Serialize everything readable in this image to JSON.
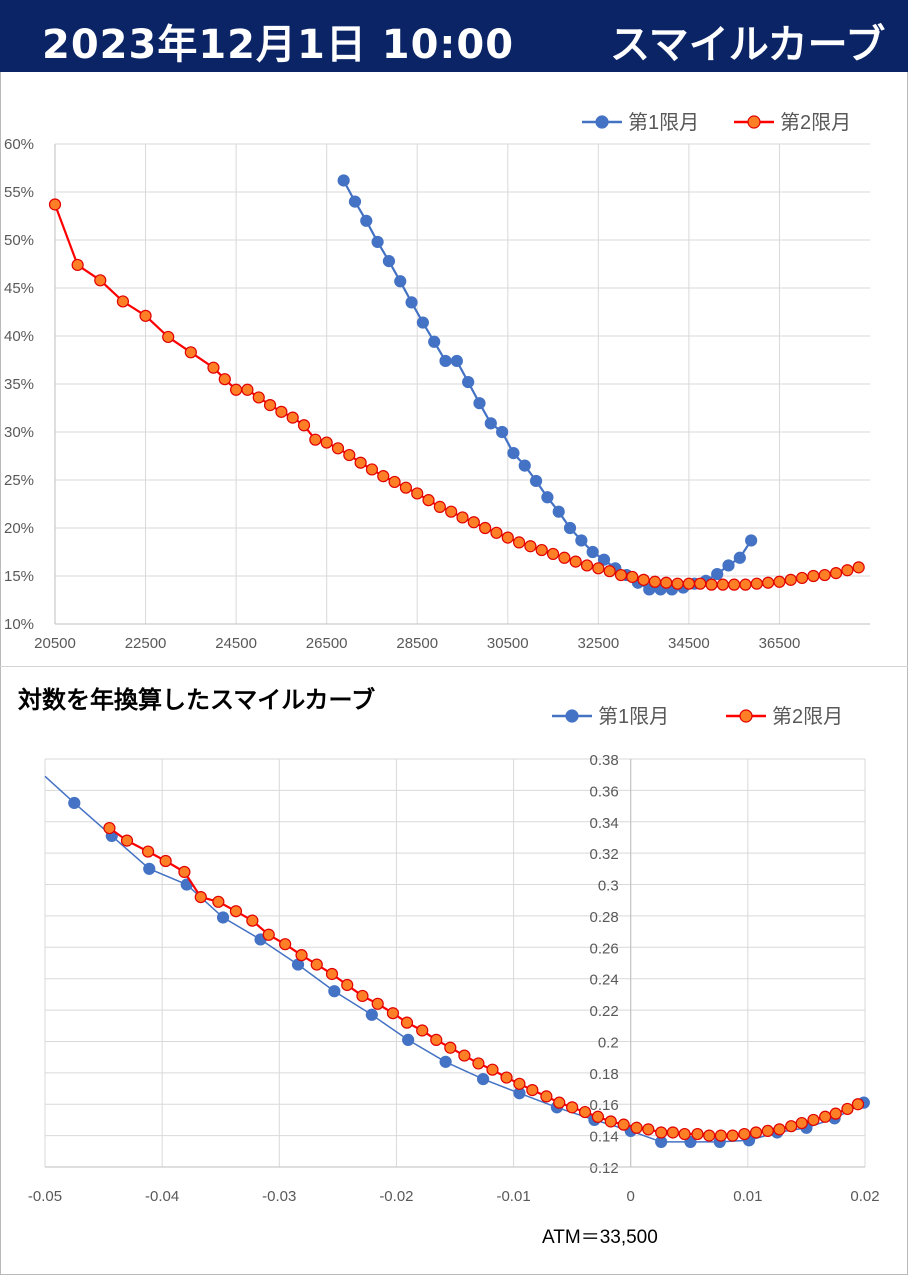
{
  "header": {
    "date": "2023年12月1日 10:00",
    "title": "スマイルカーブ",
    "bg_color": "#0b2466"
  },
  "atm_note": "ATM＝33,500",
  "chart_data": [
    {
      "type": "line",
      "title": "",
      "xlabel": "",
      "ylabel": "",
      "x_ticks": [
        20500,
        22500,
        24500,
        26500,
        28500,
        30500,
        32500,
        34500,
        36500
      ],
      "y_ticks": [
        "10%",
        "15%",
        "20%",
        "25%",
        "30%",
        "35%",
        "40%",
        "45%",
        "50%",
        "55%",
        "60%"
      ],
      "xlim": [
        20500,
        38500
      ],
      "ylim": [
        0.1,
        0.6
      ],
      "grid": true,
      "legend_position": "top-right",
      "series": [
        {
          "name": "第1限月",
          "color": "#4472c4",
          "marker_fill": "#4472c4",
          "marker_edge": "#4472c4",
          "points": [
            [
              26875,
              0.562
            ],
            [
              27125,
              0.54
            ],
            [
              27375,
              0.52
            ],
            [
              27625,
              0.498
            ],
            [
              27875,
              0.478
            ],
            [
              28125,
              0.457
            ],
            [
              28375,
              0.435
            ],
            [
              28625,
              0.414
            ],
            [
              28875,
              0.394
            ],
            [
              29125,
              0.374
            ],
            [
              29375,
              0.374
            ],
            [
              29625,
              0.352
            ],
            [
              29875,
              0.33
            ],
            [
              30125,
              0.309
            ],
            [
              30375,
              0.3
            ],
            [
              30625,
              0.278
            ],
            [
              30875,
              0.265
            ],
            [
              31125,
              0.249
            ],
            [
              31375,
              0.232
            ],
            [
              31625,
              0.217
            ],
            [
              31875,
              0.2
            ],
            [
              32125,
              0.187
            ],
            [
              32375,
              0.175
            ],
            [
              32625,
              0.167
            ],
            [
              32875,
              0.158
            ],
            [
              33125,
              0.151
            ],
            [
              33375,
              0.143
            ],
            [
              33625,
              0.136
            ],
            [
              33875,
              0.136
            ],
            [
              34125,
              0.136
            ],
            [
              34375,
              0.138
            ],
            [
              34625,
              0.142
            ],
            [
              34875,
              0.145
            ],
            [
              35125,
              0.152
            ],
            [
              35375,
              0.161
            ],
            [
              35625,
              0.169
            ],
            [
              35875,
              0.187
            ]
          ]
        },
        {
          "name": "第2限月",
          "color": "#ff0000",
          "marker_fill": "#ff7f27",
          "marker_edge": "#e00000",
          "points": [
            [
              20500,
              0.537
            ],
            [
              21000,
              0.474
            ],
            [
              21500,
              0.458
            ],
            [
              22000,
              0.436
            ],
            [
              22500,
              0.421
            ],
            [
              23000,
              0.399
            ],
            [
              23500,
              0.383
            ],
            [
              24000,
              0.367
            ],
            [
              24250,
              0.355
            ],
            [
              24500,
              0.344
            ],
            [
              24750,
              0.344
            ],
            [
              25000,
              0.336
            ],
            [
              25250,
              0.328
            ],
            [
              25500,
              0.321
            ],
            [
              25750,
              0.315
            ],
            [
              26000,
              0.307
            ],
            [
              26250,
              0.292
            ],
            [
              26500,
              0.289
            ],
            [
              26750,
              0.283
            ],
            [
              27000,
              0.276
            ],
            [
              27250,
              0.268
            ],
            [
              27500,
              0.261
            ],
            [
              27750,
              0.254
            ],
            [
              28000,
              0.248
            ],
            [
              28250,
              0.242
            ],
            [
              28500,
              0.236
            ],
            [
              28750,
              0.229
            ],
            [
              29000,
              0.222
            ],
            [
              29250,
              0.217
            ],
            [
              29500,
              0.211
            ],
            [
              29750,
              0.206
            ],
            [
              30000,
              0.2
            ],
            [
              30250,
              0.195
            ],
            [
              30500,
              0.19
            ],
            [
              30750,
              0.185
            ],
            [
              31000,
              0.181
            ],
            [
              31250,
              0.177
            ],
            [
              31500,
              0.173
            ],
            [
              31750,
              0.169
            ],
            [
              32000,
              0.165
            ],
            [
              32250,
              0.161
            ],
            [
              32500,
              0.158
            ],
            [
              32750,
              0.155
            ],
            [
              33000,
              0.151
            ],
            [
              33250,
              0.149
            ],
            [
              33500,
              0.146
            ],
            [
              33750,
              0.144
            ],
            [
              34000,
              0.143
            ],
            [
              34250,
              0.142
            ],
            [
              34500,
              0.142
            ],
            [
              34750,
              0.142
            ],
            [
              35000,
              0.141
            ],
            [
              35250,
              0.141
            ],
            [
              35500,
              0.141
            ],
            [
              35750,
              0.141
            ],
            [
              36000,
              0.142
            ],
            [
              36250,
              0.143
            ],
            [
              36500,
              0.144
            ],
            [
              36750,
              0.146
            ],
            [
              37000,
              0.148
            ],
            [
              37250,
              0.15
            ],
            [
              37500,
              0.151
            ],
            [
              37750,
              0.153
            ],
            [
              38000,
              0.156
            ],
            [
              38250,
              0.159
            ]
          ]
        }
      ]
    },
    {
      "type": "line",
      "title": "対数を年換算したスマイルカーブ",
      "xlabel": "",
      "ylabel": "",
      "x_ticks": [
        "-0.05",
        "-0.04",
        "-0.03",
        "-0.02",
        "-0.01",
        "0",
        "0.01",
        "0.02"
      ],
      "y_ticks": [
        "0.12",
        "0.14",
        "0.16",
        "0.18",
        "0.2",
        "0.22",
        "0.24",
        "0.26",
        "0.28",
        "0.3",
        "0.32",
        "0.34",
        "0.36",
        "0.38"
      ],
      "xlim": [
        -0.05,
        0.02
      ],
      "ylim": [
        0.12,
        0.38
      ],
      "grid": true,
      "legend_position": "top-right",
      "series": [
        {
          "name": "第1限月",
          "color": "#4472c4",
          "marker_fill": "#4472c4",
          "marker_edge": "#4472c4",
          "line_x_start": -0.05,
          "line_y_start": 0.369,
          "points": [
            [
              -0.0475,
              0.352
            ],
            [
              -0.0443,
              0.331
            ],
            [
              -0.0411,
              0.31
            ],
            [
              -0.0379,
              0.3
            ],
            [
              -0.0348,
              0.279
            ],
            [
              -0.0316,
              0.265
            ],
            [
              -0.0284,
              0.249
            ],
            [
              -0.0253,
              0.232
            ],
            [
              -0.0221,
              0.217
            ],
            [
              -0.019,
              0.201
            ],
            [
              -0.0158,
              0.187
            ],
            [
              -0.0126,
              0.176
            ],
            [
              -0.0095,
              0.167
            ],
            [
              -0.0063,
              0.158
            ],
            [
              -0.0031,
              0.15
            ],
            [
              0.0,
              0.143
            ],
            [
              0.0026,
              0.136
            ],
            [
              0.0051,
              0.136
            ],
            [
              0.0076,
              0.136
            ],
            [
              0.0101,
              0.137
            ],
            [
              0.0125,
              0.142
            ],
            [
              0.015,
              0.145
            ],
            [
              0.0174,
              0.151
            ],
            [
              0.0199,
              0.161
            ]
          ]
        },
        {
          "name": "第2限月",
          "color": "#ff0000",
          "marker_fill": "#ff7f27",
          "marker_edge": "#e00000",
          "points": [
            [
              -0.0445,
              0.336
            ],
            [
              -0.043,
              0.328
            ],
            [
              -0.0412,
              0.321
            ],
            [
              -0.0397,
              0.315
            ],
            [
              -0.0381,
              0.308
            ],
            [
              -0.0367,
              0.292
            ],
            [
              -0.0352,
              0.289
            ],
            [
              -0.0337,
              0.283
            ],
            [
              -0.0323,
              0.277
            ],
            [
              -0.0309,
              0.268
            ],
            [
              -0.0295,
              0.262
            ],
            [
              -0.0281,
              0.255
            ],
            [
              -0.0268,
              0.249
            ],
            [
              -0.0255,
              0.243
            ],
            [
              -0.0242,
              0.236
            ],
            [
              -0.0229,
              0.229
            ],
            [
              -0.0216,
              0.224
            ],
            [
              -0.0203,
              0.218
            ],
            [
              -0.0191,
              0.212
            ],
            [
              -0.0178,
              0.207
            ],
            [
              -0.0166,
              0.201
            ],
            [
              -0.0154,
              0.196
            ],
            [
              -0.0142,
              0.191
            ],
            [
              -0.013,
              0.186
            ],
            [
              -0.0118,
              0.182
            ],
            [
              -0.0106,
              0.177
            ],
            [
              -0.0095,
              0.173
            ],
            [
              -0.0084,
              0.169
            ],
            [
              -0.0072,
              0.165
            ],
            [
              -0.0061,
              0.161
            ],
            [
              -0.005,
              0.158
            ],
            [
              -0.0039,
              0.155
            ],
            [
              -0.0028,
              0.152
            ],
            [
              -0.0017,
              0.149
            ],
            [
              -0.0006,
              0.147
            ],
            [
              0.0005,
              0.145
            ],
            [
              0.0015,
              0.144
            ],
            [
              0.0026,
              0.142
            ],
            [
              0.0036,
              0.142
            ],
            [
              0.0046,
              0.141
            ],
            [
              0.0057,
              0.141
            ],
            [
              0.0067,
              0.14
            ],
            [
              0.0077,
              0.14
            ],
            [
              0.0087,
              0.14
            ],
            [
              0.0097,
              0.141
            ],
            [
              0.0107,
              0.142
            ],
            [
              0.0117,
              0.143
            ],
            [
              0.0127,
              0.144
            ],
            [
              0.0137,
              0.146
            ],
            [
              0.0146,
              0.148
            ],
            [
              0.0156,
              0.15
            ],
            [
              0.0166,
              0.152
            ],
            [
              0.0175,
              0.154
            ],
            [
              0.0185,
              0.157
            ],
            [
              0.0194,
              0.16
            ]
          ]
        }
      ]
    }
  ]
}
